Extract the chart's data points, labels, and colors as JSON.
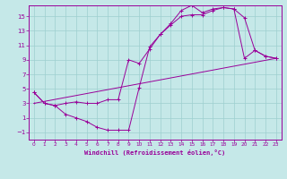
{
  "xlabel": "Windchill (Refroidissement éolien,°C)",
  "bg_color": "#c5e8e8",
  "grid_color": "#9dcfcf",
  "line_color": "#990099",
  "spine_color": "#990099",
  "xlim": [
    -0.5,
    23.5
  ],
  "ylim": [
    -2.0,
    16.5
  ],
  "xticks": [
    0,
    1,
    2,
    3,
    4,
    5,
    6,
    7,
    8,
    9,
    10,
    11,
    12,
    13,
    14,
    15,
    16,
    17,
    18,
    19,
    20,
    21,
    22,
    23
  ],
  "yticks": [
    -1,
    1,
    3,
    5,
    7,
    9,
    11,
    13,
    15
  ],
  "curve1_x": [
    0,
    1,
    2,
    3,
    4,
    5,
    6,
    7,
    8,
    9,
    10,
    11,
    12,
    13,
    14,
    15,
    16,
    17,
    18,
    19,
    20,
    21,
    22,
    23
  ],
  "curve1_y": [
    4.5,
    3.0,
    2.7,
    1.5,
    1.0,
    0.5,
    -0.3,
    -0.7,
    -0.7,
    -0.7,
    5.2,
    10.8,
    12.5,
    14.0,
    15.8,
    16.5,
    15.5,
    16.0,
    16.2,
    16.0,
    14.8,
    10.3,
    9.5,
    9.2
  ],
  "curve2_x": [
    0,
    1,
    2,
    3,
    4,
    5,
    6,
    7,
    8,
    9,
    10,
    11,
    12,
    13,
    14,
    15,
    16,
    17,
    18,
    19,
    20,
    21,
    22,
    23
  ],
  "curve2_y": [
    4.5,
    3.0,
    2.7,
    3.0,
    3.2,
    3.0,
    3.0,
    3.5,
    3.5,
    9.0,
    8.5,
    10.5,
    12.5,
    13.8,
    15.0,
    15.2,
    15.2,
    15.8,
    16.2,
    16.0,
    9.2,
    10.3,
    9.5,
    9.2
  ],
  "curve3_x": [
    0,
    23
  ],
  "curve3_y": [
    3.0,
    9.2
  ]
}
